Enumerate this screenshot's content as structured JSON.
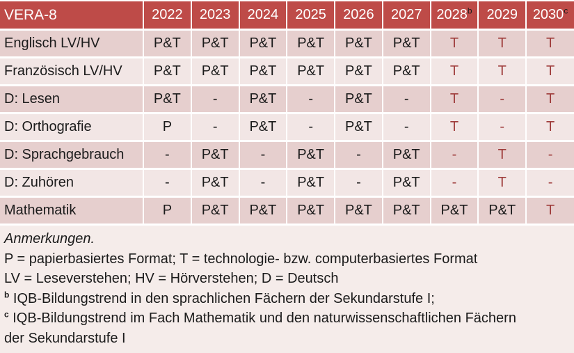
{
  "colors": {
    "header_bg": "#BE4B48",
    "header_text": "#FFFFFF",
    "row_odd_bg": "#E6CFCE",
    "row_even_bg": "#F2E6E5",
    "notes_bg": "#F5ECEA",
    "accent_text": "#9E3B3A",
    "body_text": "#1B1B1B",
    "border": "#FFFFFF"
  },
  "table": {
    "corner_label": "VERA-8",
    "year_columns": [
      {
        "label": "2022"
      },
      {
        "label": "2023"
      },
      {
        "label": "2024"
      },
      {
        "label": "2025"
      },
      {
        "label": "2026"
      },
      {
        "label": "2027"
      },
      {
        "label": "2028",
        "sup": "b"
      },
      {
        "label": "2029"
      },
      {
        "label": "2030",
        "sup": "c"
      }
    ],
    "rows": [
      {
        "label": "Englisch LV/HV",
        "cells": [
          {
            "text": "P&T"
          },
          {
            "text": "P&T"
          },
          {
            "text": "P&T"
          },
          {
            "text": "P&T"
          },
          {
            "text": "P&T"
          },
          {
            "text": "P&T"
          },
          {
            "text": "T",
            "accent": true
          },
          {
            "text": "T",
            "accent": true
          },
          {
            "text": "T",
            "accent": true
          }
        ]
      },
      {
        "label": "Französisch LV/HV",
        "cells": [
          {
            "text": "P&T"
          },
          {
            "text": "P&T"
          },
          {
            "text": "P&T"
          },
          {
            "text": "P&T"
          },
          {
            "text": "P&T"
          },
          {
            "text": "P&T"
          },
          {
            "text": "T",
            "accent": true
          },
          {
            "text": "T",
            "accent": true
          },
          {
            "text": "T",
            "accent": true
          }
        ]
      },
      {
        "label": "D: Lesen",
        "cells": [
          {
            "text": "P&T"
          },
          {
            "text": "-"
          },
          {
            "text": "P&T"
          },
          {
            "text": "-"
          },
          {
            "text": "P&T"
          },
          {
            "text": "-"
          },
          {
            "text": "T",
            "accent": true
          },
          {
            "text": "-",
            "accent": true
          },
          {
            "text": "T",
            "accent": true
          }
        ]
      },
      {
        "label": "D: Orthografie",
        "cells": [
          {
            "text": "P"
          },
          {
            "text": "-"
          },
          {
            "text": "P&T"
          },
          {
            "text": "-"
          },
          {
            "text": "P&T"
          },
          {
            "text": "-"
          },
          {
            "text": "T",
            "accent": true
          },
          {
            "text": "-",
            "accent": true
          },
          {
            "text": "T",
            "accent": true
          }
        ]
      },
      {
        "label": "D: Sprachgebrauch",
        "cells": [
          {
            "text": "-"
          },
          {
            "text": "P&T"
          },
          {
            "text": "-"
          },
          {
            "text": "P&T"
          },
          {
            "text": "-"
          },
          {
            "text": "P&T"
          },
          {
            "text": "-",
            "accent": true
          },
          {
            "text": "T",
            "accent": true
          },
          {
            "text": "-",
            "accent": true
          }
        ]
      },
      {
        "label": "D: Zuhören",
        "cells": [
          {
            "text": "-"
          },
          {
            "text": "P&T"
          },
          {
            "text": "-"
          },
          {
            "text": "P&T"
          },
          {
            "text": "-"
          },
          {
            "text": "P&T"
          },
          {
            "text": "-",
            "accent": true
          },
          {
            "text": "T",
            "accent": true
          },
          {
            "text": "-",
            "accent": true
          }
        ]
      },
      {
        "label": "Mathematik",
        "cells": [
          {
            "text": "P"
          },
          {
            "text": "P&T"
          },
          {
            "text": "P&T"
          },
          {
            "text": "P&T"
          },
          {
            "text": "P&T"
          },
          {
            "text": "P&T"
          },
          {
            "text": "P&T"
          },
          {
            "text": "P&T"
          },
          {
            "text": "T",
            "accent": true
          }
        ]
      }
    ]
  },
  "notes": {
    "heading": "Anmerkungen.",
    "lines": [
      {
        "text": "P = papierbasiertes Format; T = technologie- bzw. computerbasiertes Format"
      },
      {
        "text": "LV = Leseverstehen; HV = Hörverstehen; D = Deutsch"
      },
      {
        "sup": "b",
        "text": "IQB-Bildungstrend in den sprachlichen Fächern der Sekundarstufe I;"
      },
      {
        "sup": "c",
        "text": "IQB-Bildungstrend im Fach Mathematik und den naturwissenschaftlichen Fächern der Sekundarstufe I"
      }
    ]
  }
}
